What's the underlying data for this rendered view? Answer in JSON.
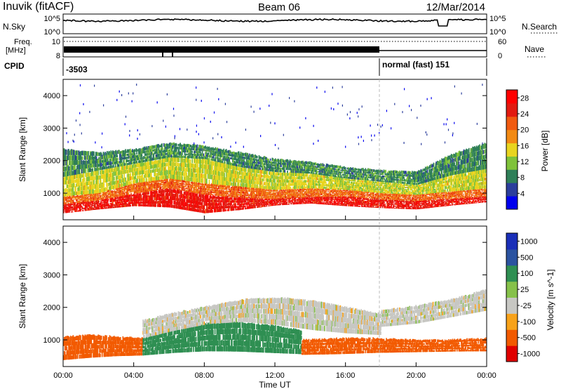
{
  "header": {
    "title": "Inuvik (fitACF)",
    "beam": "Beam 06",
    "date": "12/Mar/2014"
  },
  "noise_panel": {
    "left_label": "N.Sky",
    "right_label": "N.Search",
    "left_ticks": [
      "10^5",
      "10^0"
    ],
    "right_ticks": [
      "10^5",
      "10^0"
    ]
  },
  "freq_panel": {
    "left_label_line1": "Freq.",
    "left_label_line2": "[MHz]",
    "left_ticks": [
      "10",
      "8"
    ],
    "right_label": "Nave",
    "right_ticks": [
      "60",
      "0"
    ]
  },
  "cpid_panel": {
    "label": "CPID",
    "first_id": "-3503",
    "second_id": "normal (fast) 151"
  },
  "colors": {
    "power_scale": [
      "#0000ee",
      "#2b3e9c",
      "#2f7f58",
      "#7fc23a",
      "#e8d41f",
      "#f28a14",
      "#f05a10",
      "#e21a10",
      "#ff0000"
    ],
    "velocity_scale": [
      "#e00000",
      "#f25a00",
      "#f7a21a",
      "#c7c7c3",
      "#86c14a",
      "#2f8f52",
      "#2b53a0",
      "#1a2fb8"
    ],
    "axis": "#000000"
  },
  "chart_data": [
    {
      "type": "heatmap",
      "name": "power",
      "ylabel": "Slant Range [km]",
      "yticks": [
        "1000",
        "2000",
        "3000",
        "4000"
      ],
      "ylim": [
        180,
        4500
      ],
      "colorbar_label": "Power [dB]",
      "colorbar_ticks": [
        "4",
        "8",
        "12",
        "16",
        "20",
        "24",
        "28"
      ],
      "colorbar_range": [
        0,
        30
      ],
      "bands": [
        {
          "level": 27,
          "from_h": 0,
          "to_h": 24,
          "range_low": [
            380,
            500,
            600,
            560,
            380,
            480,
            620,
            680,
            600,
            540,
            500,
            620,
            720
          ],
          "range_high": [
            650,
            780,
            980,
            1150,
            950,
            850,
            820,
            880,
            900,
            800,
            760,
            820,
            900
          ]
        },
        {
          "level": 22,
          "from_h": 0,
          "to_h": 24,
          "range_low": [
            650,
            780,
            980,
            1150,
            950,
            850,
            820,
            880,
            900,
            800,
            760,
            820,
            900
          ],
          "range_high": [
            900,
            1000,
            1300,
            1450,
            1300,
            1200,
            1100,
            1150,
            1100,
            1000,
            950,
            1050,
            1150
          ]
        },
        {
          "level": 14,
          "from_h": 0,
          "to_h": 24,
          "range_low": [
            900,
            1000,
            1300,
            1450,
            1300,
            1200,
            1100,
            1150,
            1100,
            1000,
            950,
            1050,
            1150
          ],
          "range_high": [
            1500,
            1700,
            1900,
            2100,
            2050,
            1800,
            1650,
            1600,
            1450,
            1350,
            1250,
            1550,
            1750
          ]
        },
        {
          "level": 8,
          "from_h": 0,
          "to_h": 24,
          "range_low": [
            1500,
            1700,
            1900,
            2100,
            2050,
            1800,
            1650,
            1600,
            1450,
            1350,
            1250,
            1550,
            1750
          ],
          "range_high": [
            2350,
            2250,
            2350,
            2550,
            2450,
            2250,
            2050,
            1950,
            1800,
            1700,
            1650,
            2200,
            2550
          ]
        }
      ]
    },
    {
      "type": "heatmap",
      "name": "velocity",
      "ylabel": "Slant Range [km]",
      "yticks": [
        "1000",
        "2000",
        "3000",
        "4000"
      ],
      "ylim": [
        180,
        4500
      ],
      "xlabel": "Time UT",
      "xticks": [
        "00:00",
        "04:00",
        "08:00",
        "12:00",
        "16:00",
        "20:00",
        "00:00"
      ],
      "xlim": [
        0,
        24
      ],
      "colorbar_label": "Velocity [m s^-1]",
      "colorbar_ticks": [
        "1000",
        "500",
        "100",
        "25",
        "-25",
        "-100",
        "-500",
        "-1000"
      ],
      "bands": [
        {
          "level": -200,
          "from_h": 0,
          "to_h": 4.5,
          "range_low": [
            380,
            450,
            500,
            520
          ],
          "range_high": [
            1100,
            1150,
            1100,
            1050
          ]
        },
        {
          "level": 200,
          "from_h": 4.5,
          "to_h": 13.5,
          "range_low": [
            520,
            600,
            650,
            640,
            600,
            560
          ],
          "range_high": [
            1050,
            1300,
            1500,
            1550,
            1450,
            1300
          ]
        },
        {
          "level": 0,
          "from_h": 4.5,
          "to_h": 18,
          "range_low": [
            1050,
            1300,
            1500,
            1550,
            1450,
            1300,
            1200,
            1150
          ],
          "range_high": [
            1600,
            1850,
            2050,
            2250,
            2300,
            2200,
            2000,
            1800
          ]
        },
        {
          "level": -200,
          "from_h": 13.5,
          "to_h": 24,
          "range_low": [
            540,
            560,
            600,
            620,
            640,
            650
          ],
          "range_high": [
            1000,
            1050,
            1050,
            1000,
            1000,
            1050
          ]
        },
        {
          "level": 0,
          "from_h": 18,
          "to_h": 24,
          "range_low": [
            1400,
            1500,
            1700,
            1900
          ],
          "range_high": [
            1900,
            2050,
            2250,
            2550
          ]
        }
      ]
    }
  ]
}
